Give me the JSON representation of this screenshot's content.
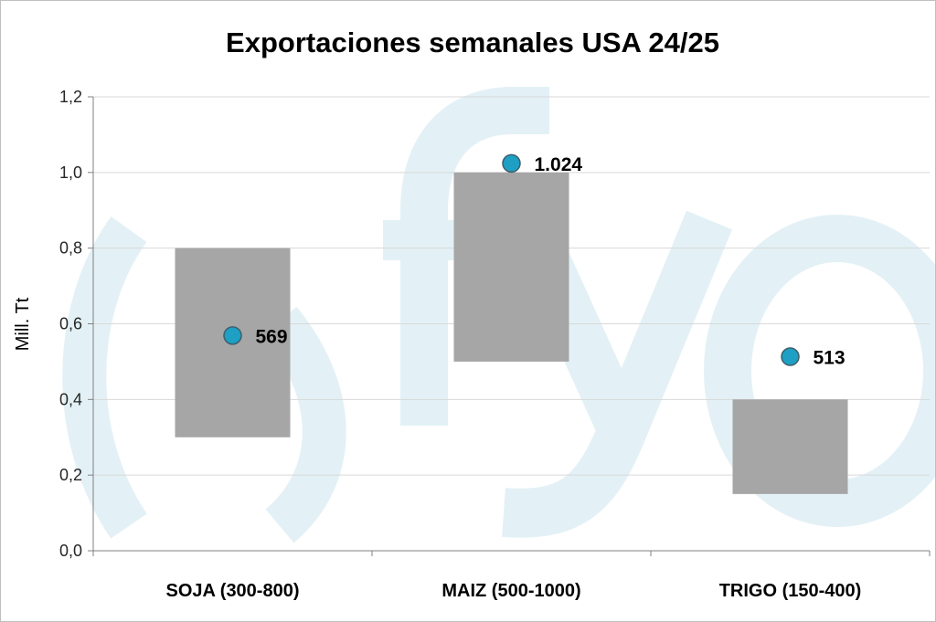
{
  "chart_data": {
    "type": "bar",
    "title": "Exportaciones semanales USA 24/25",
    "xlabel": "",
    "ylabel": "Mill. Tt",
    "ylim": [
      0,
      1.2
    ],
    "yticks": [
      0,
      0.2,
      0.4,
      0.6,
      0.8,
      1.0,
      1.2
    ],
    "ytick_labels": [
      "0,0",
      "0,2",
      "0,4",
      "0,6",
      "0,8",
      "1,0",
      "1,2"
    ],
    "grid": true,
    "categories": [
      "SOJA (300-800)",
      "MAIZ (500-1000)",
      "TRIGO (150-400)"
    ],
    "series": [
      {
        "kind": "floating-range",
        "color": "#a6a6a6",
        "low": [
          0.3,
          0.5,
          0.15
        ],
        "high": [
          0.8,
          1.0,
          0.4
        ]
      },
      {
        "kind": "marker",
        "color": "#1da0c3",
        "values": [
          0.569,
          1.024,
          0.513
        ],
        "labels": [
          "569",
          "1.024",
          "513"
        ]
      }
    ],
    "watermark": {
      "text": "()fyo",
      "color": "#e3f1f6"
    }
  }
}
